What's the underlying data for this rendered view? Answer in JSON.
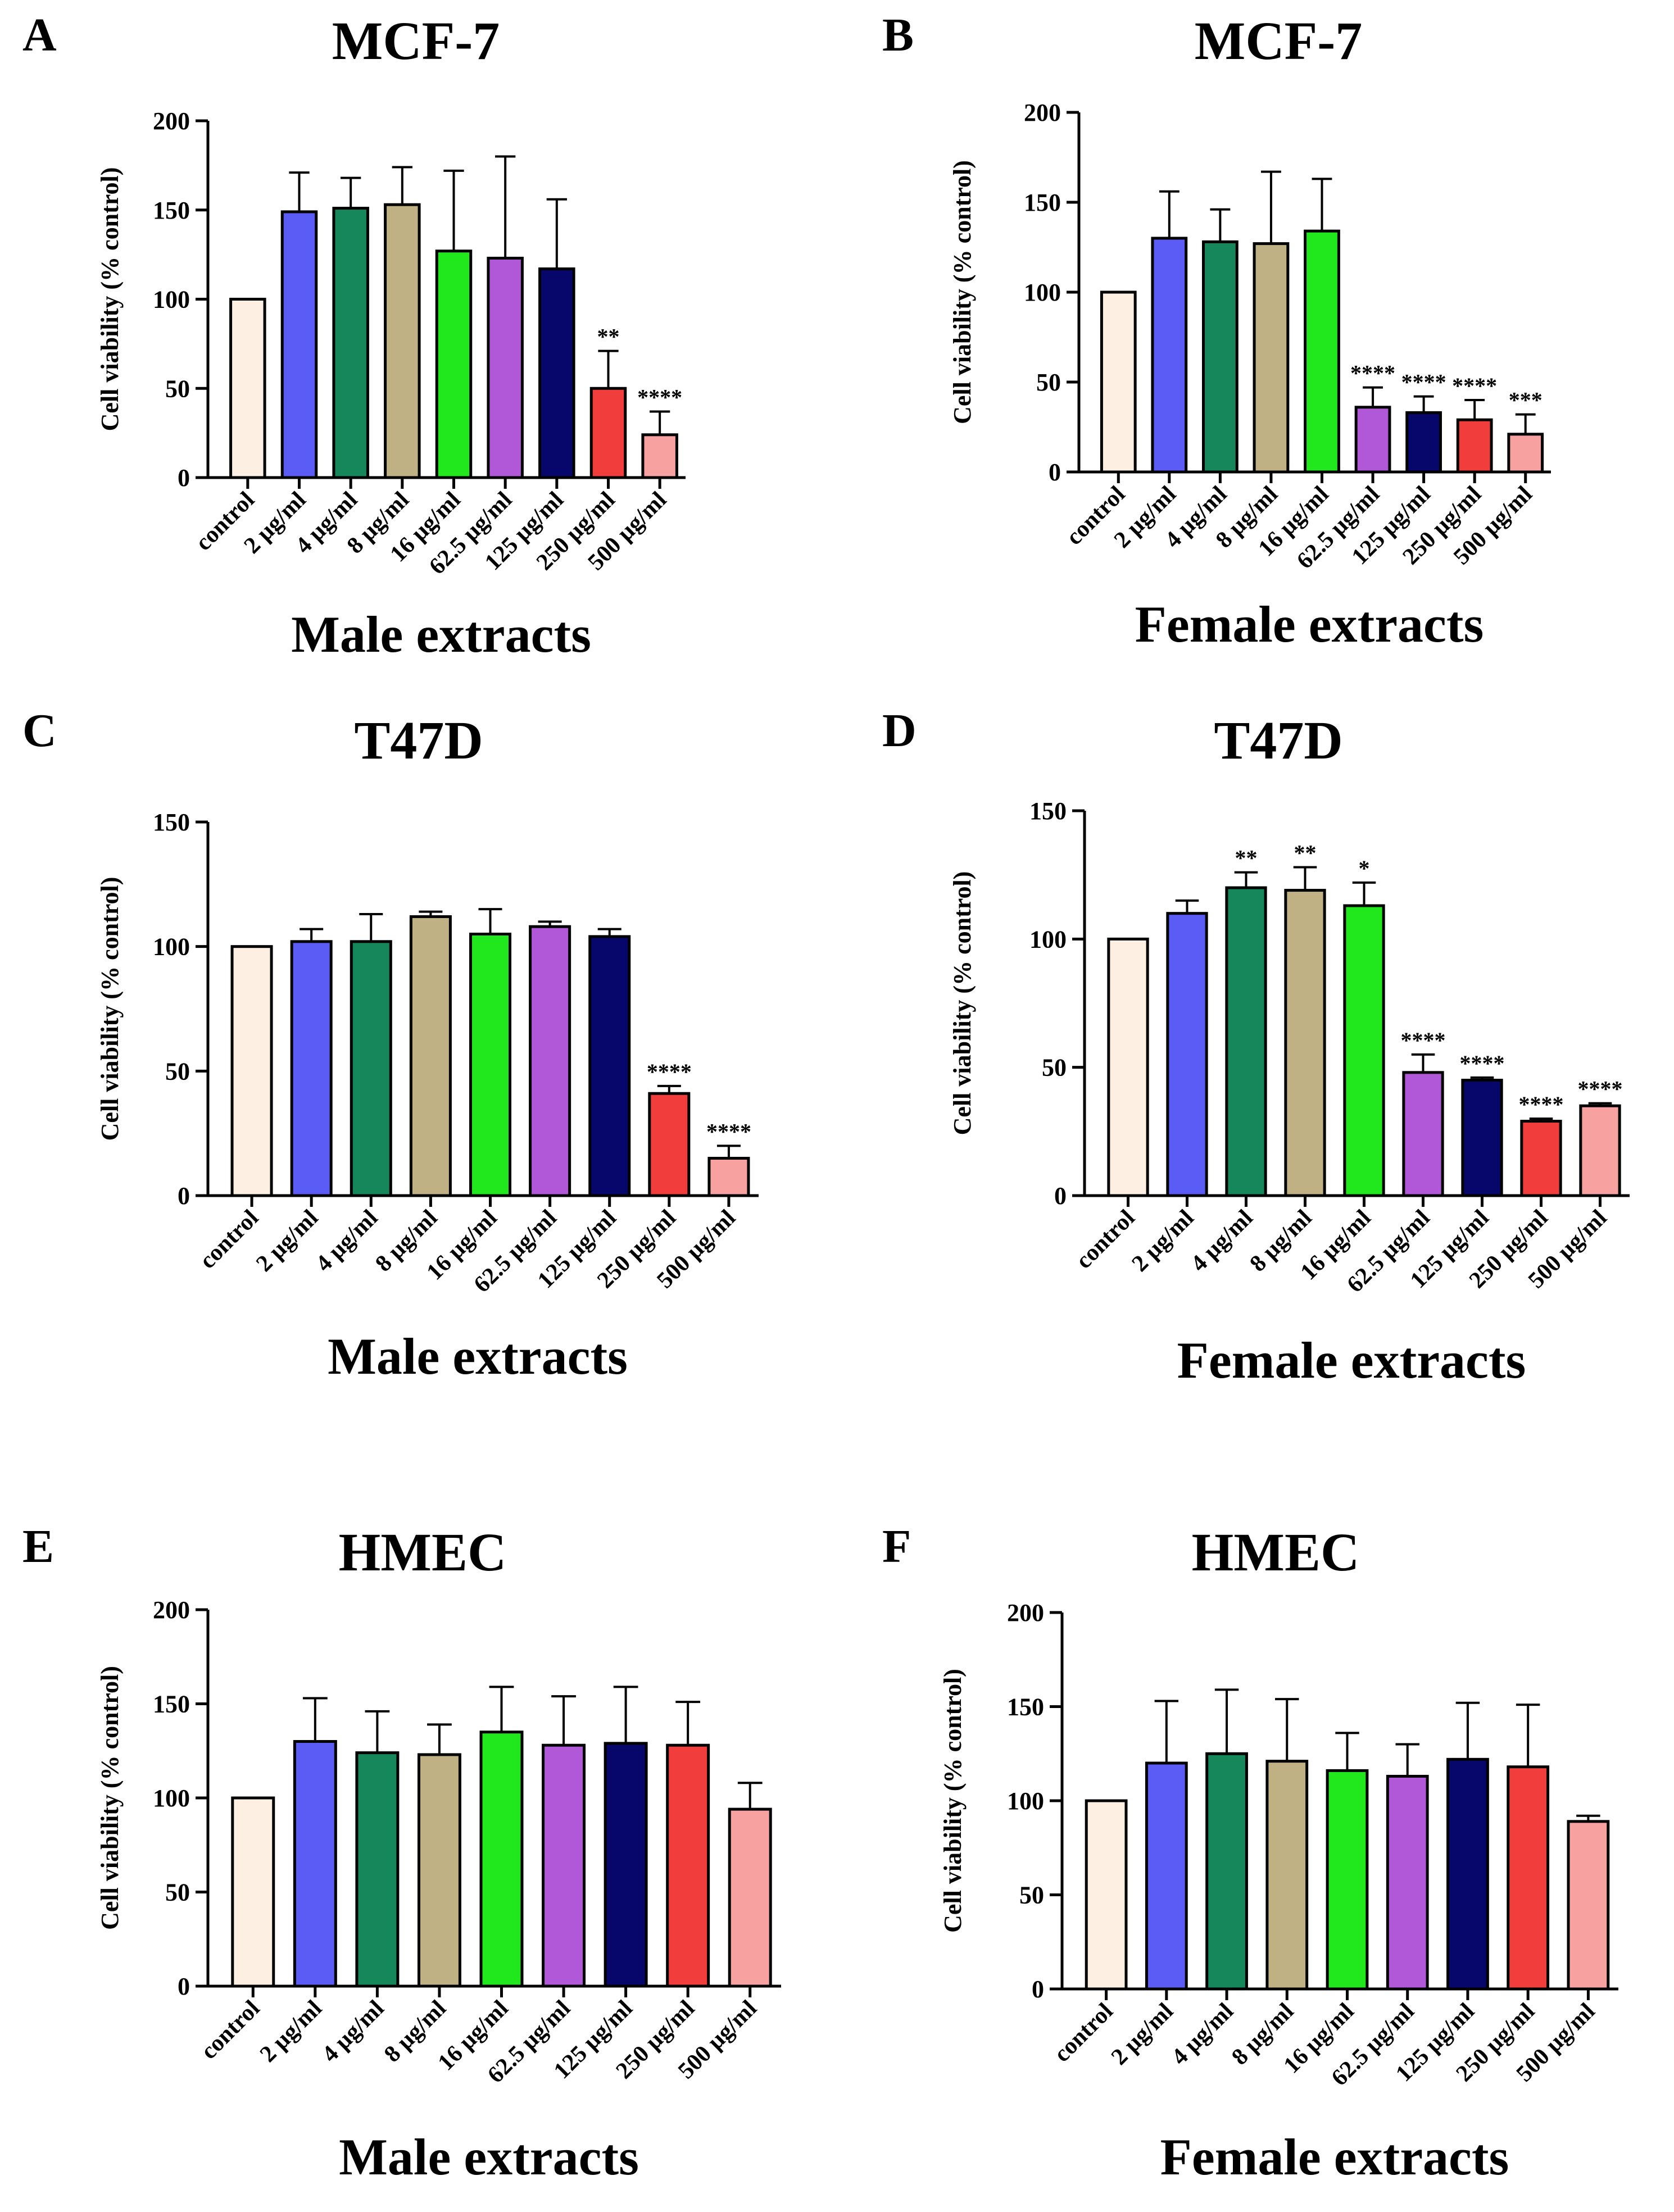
{
  "colors": {
    "control": "#fdf0e2",
    "2 µg/ml": "#5b5bf5",
    "4 µg/ml": "#16865b",
    "8 µg/ml": "#bfb183",
    "16 µg/ml": "#21e81d",
    "62.5 µg/ml": "#b158d8",
    "125 µg/ml": "#06066b",
    "250 µg/ml": "#f23d3d",
    "500 µg/ml": "#f7a1a1"
  },
  "chart_data": [
    {
      "panel": "A",
      "type": "bar",
      "title": "MCF-7",
      "ylabel": "Cell viability (% control)",
      "xlabel": "Male extracts",
      "ylim": [
        0,
        200
      ],
      "yticks": [
        0,
        50,
        100,
        150,
        200
      ],
      "categories": [
        "control",
        "2 µg/ml",
        "4 µg/ml",
        "8 µg/ml",
        "16 µg/ml",
        "62.5 µg/ml",
        "125 µg/ml",
        "250 µg/ml",
        "500 µg/ml"
      ],
      "values": [
        100,
        149,
        151,
        153,
        127,
        123,
        117,
        50,
        24
      ],
      "errors": [
        0,
        22,
        17,
        21,
        45,
        57,
        39,
        21,
        13
      ],
      "significance": [
        "",
        "",
        "",
        "",
        "",
        "",
        "",
        "**",
        "****"
      ]
    },
    {
      "panel": "B",
      "type": "bar",
      "title": "MCF-7",
      "ylabel": "Cell viability (% control)",
      "xlabel": "Female extracts",
      "ylim": [
        0,
        200
      ],
      "yticks": [
        0,
        50,
        100,
        150,
        200
      ],
      "categories": [
        "control",
        "2 µg/ml",
        "4 µg/ml",
        "8 µg/ml",
        "16 µg/ml",
        "62.5 µg/ml",
        "125 µg/ml",
        "250 µg/ml",
        "500 µg/ml"
      ],
      "values": [
        100,
        130,
        128,
        127,
        134,
        36,
        33,
        29,
        21
      ],
      "errors": [
        0,
        26,
        18,
        40,
        29,
        11,
        9,
        11,
        11
      ],
      "significance": [
        "",
        "",
        "",
        "",
        "",
        "****",
        "****",
        "****",
        "***"
      ]
    },
    {
      "panel": "C",
      "type": "bar",
      "title": "T47D",
      "ylabel": "Cell viability (% control)",
      "xlabel": "Male extracts",
      "ylim": [
        0,
        150
      ],
      "yticks": [
        0,
        50,
        100,
        150
      ],
      "categories": [
        "control",
        "2 µg/ml",
        "4 µg/ml",
        "8 µg/ml",
        "16 µg/ml",
        "62.5 µg/ml",
        "125 µg/ml",
        "250 µg/ml",
        "500 µg/ml"
      ],
      "values": [
        100,
        102,
        102,
        112,
        105,
        108,
        104,
        41,
        15
      ],
      "errors": [
        0,
        5,
        11,
        2,
        10,
        2,
        3,
        3,
        5
      ],
      "significance": [
        "",
        "",
        "",
        "",
        "",
        "",
        "",
        "****",
        "****"
      ]
    },
    {
      "panel": "D",
      "type": "bar",
      "title": "T47D",
      "ylabel": "Cell viability (% control)",
      "xlabel": "Female extracts",
      "ylim": [
        0,
        150
      ],
      "yticks": [
        0,
        50,
        100,
        150
      ],
      "categories": [
        "control",
        "2 µg/ml",
        "4 µg/ml",
        "8 µg/ml",
        "16 µg/ml",
        "62.5 µg/ml",
        "125 µg/ml",
        "250 µg/ml",
        "500 µg/ml"
      ],
      "values": [
        100,
        110,
        120,
        119,
        113,
        48,
        45,
        29,
        35
      ],
      "errors": [
        0,
        5,
        6,
        9,
        9,
        7,
        1,
        1,
        1
      ],
      "significance": [
        "",
        "",
        "**",
        "**",
        "*",
        "****",
        "****",
        "****",
        "****"
      ]
    },
    {
      "panel": "E",
      "type": "bar",
      "title": "HMEC",
      "ylabel": "Cell viability (% control)",
      "xlabel": "Male extracts",
      "ylim": [
        0,
        200
      ],
      "yticks": [
        0,
        50,
        100,
        150,
        200
      ],
      "categories": [
        "control",
        "2 µg/ml",
        "4 µg/ml",
        "8 µg/ml",
        "16 µg/ml",
        "62.5 µg/ml",
        "125 µg/ml",
        "250 µg/ml",
        "500 µg/ml"
      ],
      "values": [
        100,
        130,
        124,
        123,
        135,
        128,
        129,
        128,
        94
      ],
      "errors": [
        0,
        23,
        22,
        16,
        24,
        26,
        30,
        23,
        14
      ],
      "significance": [
        "",
        "",
        "",
        "",
        "",
        "",
        "",
        "",
        ""
      ]
    },
    {
      "panel": "F",
      "type": "bar",
      "title": "HMEC",
      "ylabel": "Cell viability (% control)",
      "xlabel": "Female extracts",
      "ylim": [
        0,
        200
      ],
      "yticks": [
        0,
        50,
        100,
        150,
        200
      ],
      "categories": [
        "control",
        "2 µg/ml",
        "4 µg/ml",
        "8 µg/ml",
        "16 µg/ml",
        "62.5 µg/ml",
        "125 µg/ml",
        "250 µg/ml",
        "500 µg/ml"
      ],
      "values": [
        100,
        120,
        125,
        121,
        116,
        113,
        122,
        118,
        89
      ],
      "errors": [
        0,
        33,
        34,
        33,
        20,
        17,
        30,
        33,
        3
      ],
      "significance": [
        "",
        "",
        "",
        "",
        "",
        "",
        "",
        "",
        ""
      ]
    }
  ]
}
